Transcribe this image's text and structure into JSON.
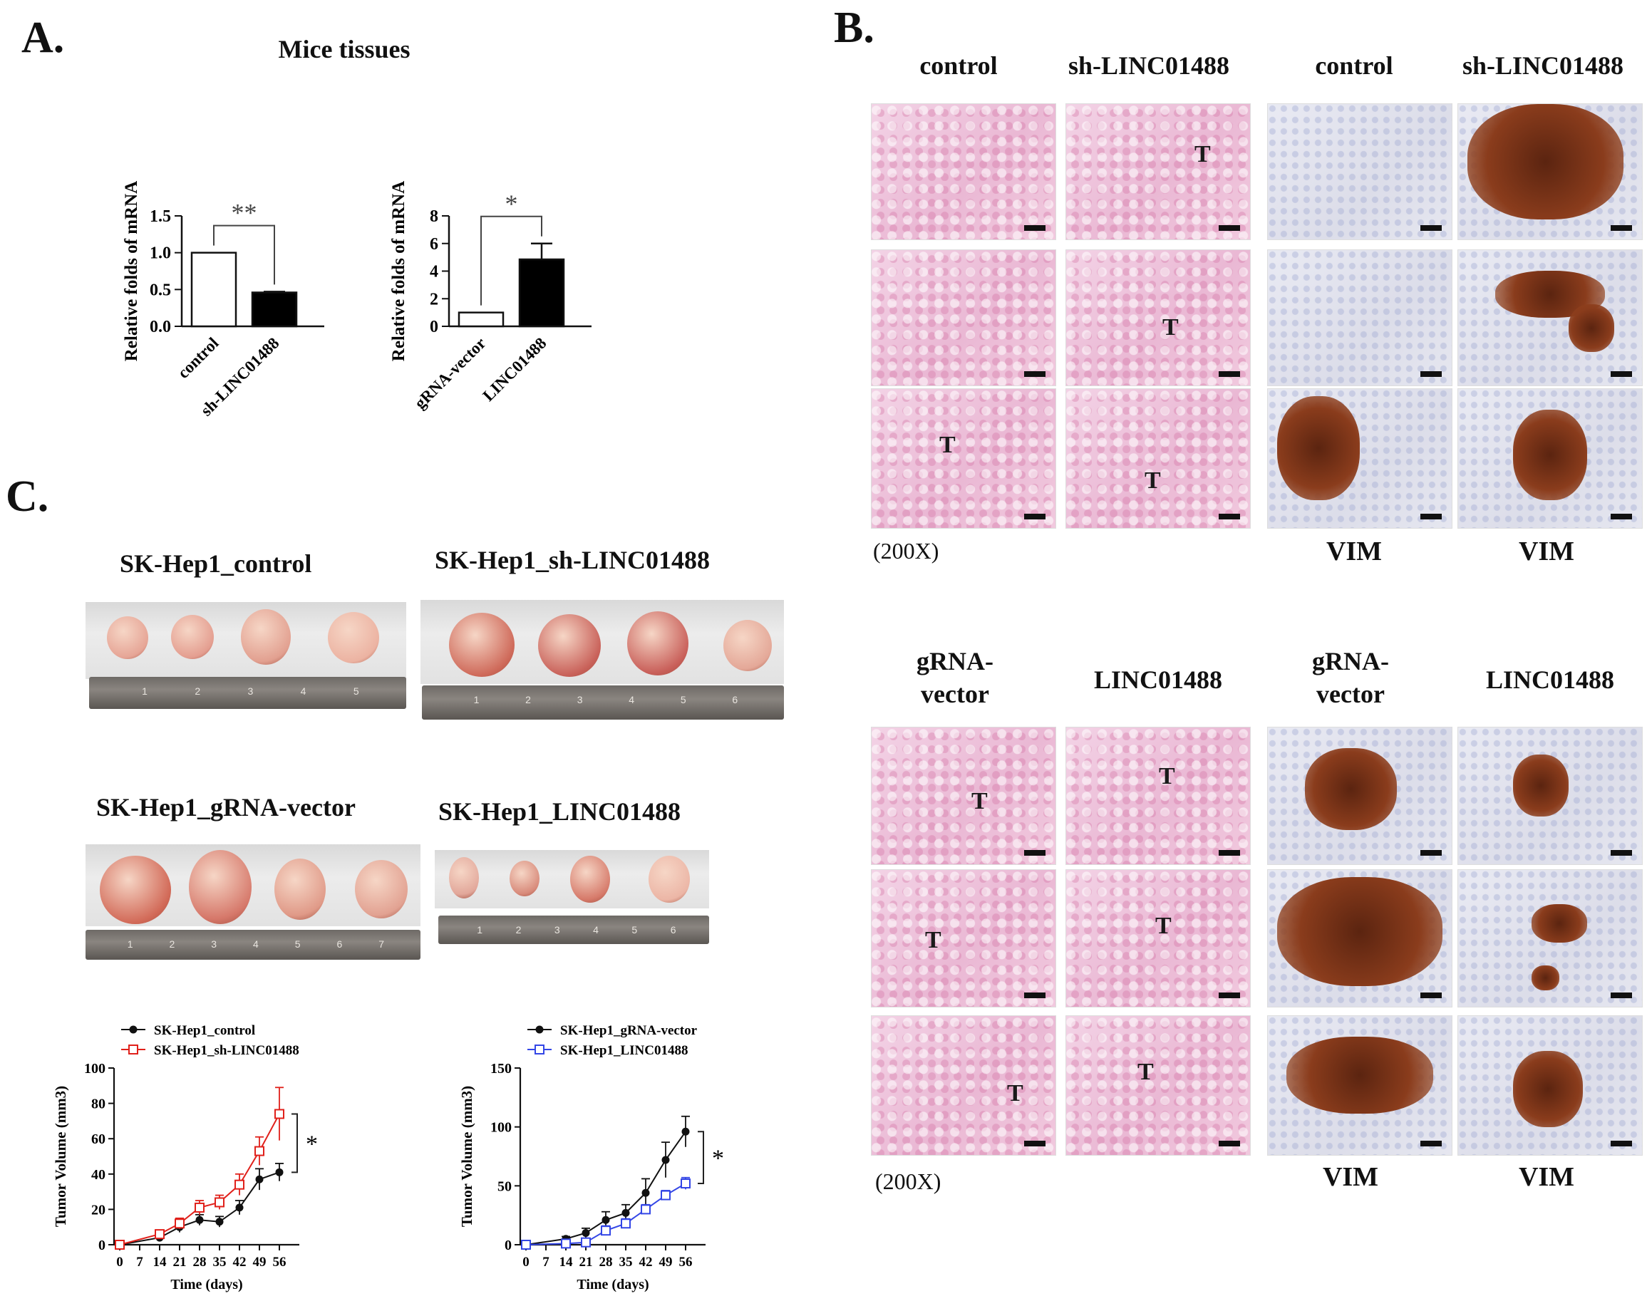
{
  "panels": {
    "a": "A.",
    "b": "B.",
    "c": "C."
  },
  "panel_a": {
    "title": "Mice tissues"
  },
  "panel_b": {
    "top_headers": [
      "control",
      "sh-LINC01488",
      "control",
      "sh-LINC01488"
    ],
    "bottom_headers": [
      "gRNA-vector",
      "LINC01488",
      "gRNA-vector",
      "LINC01488"
    ],
    "magnification": "(200X)",
    "stain_label": "VIM",
    "tumor_marker": "T"
  },
  "panel_c": {
    "conditions": [
      "SK-Hep1_control",
      "SK-Hep1_sh-LINC01488",
      "SK-Hep1_gRNA-vector",
      "SK-Hep1_LINC01488"
    ]
  },
  "chart_data": [
    {
      "type": "bar",
      "categories": [
        "control",
        "sh-LINC01488"
      ],
      "values": [
        1.0,
        0.46
      ],
      "errors": [
        0,
        0.01
      ],
      "fills": [
        "#ffffff",
        "#000000"
      ],
      "ylabel": "Relative folds of mRNA",
      "ylim": [
        0,
        1.5
      ],
      "yticks": [
        "0.0",
        "0.5",
        "1.0",
        "1.5"
      ],
      "significance": "**"
    },
    {
      "type": "bar",
      "categories": [
        "gRNA-vector",
        "LINC01488"
      ],
      "values": [
        1.0,
        4.85
      ],
      "errors": [
        0,
        1.15
      ],
      "fills": [
        "#ffffff",
        "#000000"
      ],
      "ylabel": "Relative folds of mRNA",
      "ylim": [
        0,
        8
      ],
      "yticks": [
        "0",
        "2",
        "4",
        "6",
        "8"
      ],
      "significance": "*"
    },
    {
      "type": "line",
      "x": [
        0,
        14,
        21,
        28,
        35,
        42,
        49,
        56
      ],
      "xticks": [
        "0",
        "7",
        "14",
        "21",
        "28",
        "35",
        "42",
        "49",
        "56"
      ],
      "xlabel": "Time (days)",
      "ylabel": "Tumor Volume (mm3)",
      "ylim": [
        0,
        100
      ],
      "yticks": [
        "0",
        "20",
        "40",
        "60",
        "80",
        "100"
      ],
      "series": [
        {
          "name": "SK-Hep1_control",
          "values": [
            0,
            4,
            10,
            14,
            13,
            21,
            37,
            41
          ],
          "errors": [
            0,
            2,
            3,
            3,
            3,
            4,
            6,
            5
          ],
          "color": "#111111",
          "marker": "circle"
        },
        {
          "name": "SK-Hep1_sh-LINC01488",
          "values": [
            0,
            6,
            12,
            21,
            24,
            34,
            53,
            74
          ],
          "errors": [
            0,
            2,
            3,
            4,
            4,
            6,
            8,
            15
          ],
          "color": "#e0201a",
          "marker": "square"
        }
      ],
      "significance": "*"
    },
    {
      "type": "line",
      "x": [
        0,
        14,
        21,
        28,
        35,
        42,
        49,
        56
      ],
      "xticks": [
        "0",
        "7",
        "14",
        "21",
        "28",
        "35",
        "42",
        "49",
        "56"
      ],
      "xlabel": "Time (days)",
      "ylabel": "Tumor Volume (mm3)",
      "ylim": [
        0,
        150
      ],
      "yticks": [
        "0",
        "50",
        "100",
        "150"
      ],
      "series": [
        {
          "name": "SK-Hep1_gRNA-vector",
          "values": [
            0,
            5,
            10,
            21,
            27,
            44,
            72,
            96
          ],
          "errors": [
            0,
            2,
            4,
            7,
            7,
            12,
            15,
            13
          ],
          "color": "#111111",
          "marker": "circle"
        },
        {
          "name": "SK-Hep1_LINC01488",
          "values": [
            0,
            1,
            2,
            12,
            18,
            30,
            42,
            52
          ],
          "errors": [
            0,
            1,
            2,
            4,
            4,
            4,
            4,
            5
          ],
          "color": "#3346e6",
          "marker": "square"
        }
      ],
      "significance": "*"
    }
  ]
}
